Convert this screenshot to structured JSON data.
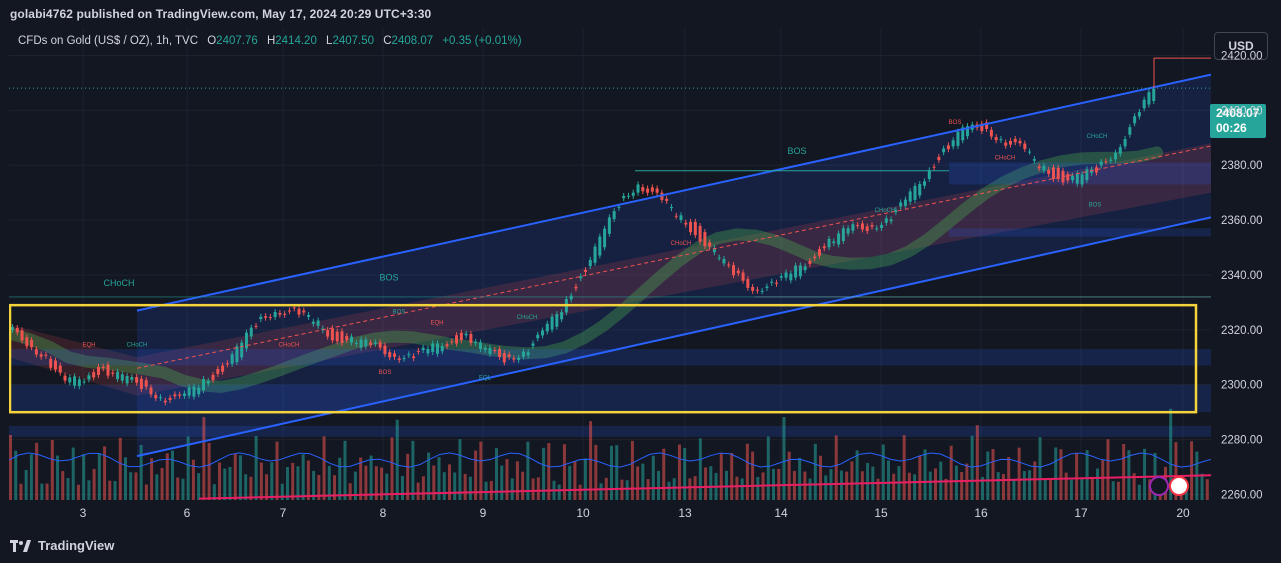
{
  "header": {
    "published": "golabi4762 published on TradingView.com, May 17, 2024 20:29 UTC+3:30"
  },
  "legend": {
    "symbol": "CFDs on Gold (US$ / OZ), 1h, TVC",
    "open_label": "O",
    "open": "2407.76",
    "high_label": "H",
    "high": "2414.20",
    "low_label": "L",
    "low": "2407.50",
    "close_label": "C",
    "close": "2408.07",
    "change": "+0.35 (+0.01%)"
  },
  "currency_button": "USD",
  "current_price": {
    "price": "2408.07",
    "countdown": "00:26"
  },
  "footer": {
    "brand": "TradingView",
    "logo_icon": "tradingview-logo-icon"
  },
  "colors": {
    "background": "#131722",
    "bull": "#26a69a",
    "bear": "#ef5350",
    "channel": "#2962ff",
    "zone": "#f5d33b",
    "smc_label_bull": "#26a69a",
    "smc_label_bear": "#ef5350"
  },
  "chart_data": {
    "type": "line",
    "title": "",
    "xlabel": "",
    "ylabel": "",
    "x_ticks": [
      "3",
      "6",
      "7",
      "8",
      "9",
      "10",
      "13",
      "14",
      "15",
      "16",
      "17",
      "20"
    ],
    "y_ticks": [
      "2420.00",
      "2400.00",
      "2380.00",
      "2360.00",
      "2340.00",
      "2320.00",
      "2300.00",
      "2280.00",
      "2260.00"
    ],
    "ylim": [
      2258,
      2430
    ],
    "grid": true,
    "series": [
      {
        "values": [
          2320,
          2316,
          2310,
          2300,
          2303,
          2306,
          2302,
          2300,
          2296,
          2294,
          2300,
          2305,
          2312,
          2322,
          2328,
          2326,
          2323,
          2318,
          2316,
          2314,
          2312,
          2310,
          2312,
          2316,
          2318,
          2312,
          2310,
          2312,
          2318,
          2328,
          2340,
          2352,
          2366,
          2374,
          2368,
          2362,
          2356,
          2348,
          2340,
          2336,
          2336,
          2340,
          2346,
          2352,
          2356,
          2358,
          2360,
          2366,
          2376,
          2386,
          2392,
          2394,
          2390,
          2386,
          2380,
          2376,
          2375,
          2378,
          2386,
          2396,
          2408
        ]
      }
    ],
    "annotations": [
      "CHoCH",
      "BOS",
      "EQH",
      "CHoCH",
      "CHoCH",
      "BOS",
      "EQH",
      "BOS",
      "CHoCH",
      "EQL",
      "BOS",
      "CHoCH",
      "CHoCH",
      "BOS",
      "CHoCH",
      "CHoCH",
      "BOS"
    ],
    "annotation_colors": [
      "bull",
      "bull",
      "bear",
      "bull",
      "bear",
      "bull",
      "bear",
      "bear",
      "bull",
      "bull",
      "bull",
      "bear",
      "bull",
      "bull",
      "bull",
      "bear",
      "bear"
    ],
    "reference_levels": {
      "current_price_line": 2408.07,
      "high_marker": 2419,
      "upper_zone_top": 2329,
      "upper_zone_bottom": 2290
    }
  }
}
